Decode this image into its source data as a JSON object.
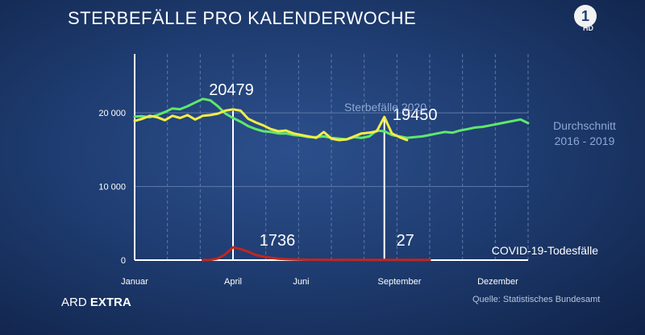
{
  "title": "STERBEFÄLLE PRO KALENDERWOCHE",
  "logo": {
    "text": "1",
    "badge": "HD"
  },
  "brand": {
    "part1": "ARD",
    "part2": "EXTRA"
  },
  "source": "Quelle: Statistisches Bundesamt",
  "colors": {
    "avg": "#5ee86a",
    "y2020": "#f5ec46",
    "covid": "#c0261e",
    "grid": "#5f78a8",
    "axis": "#ffffff"
  },
  "chart_data": {
    "type": "line",
    "title": "STERBEFÄLLE PRO KALENDERWOCHE",
    "x_domain": [
      1,
      53
    ],
    "y_domain": [
      0,
      28000
    ],
    "y_ticks": [
      {
        "v": 0,
        "label": "0"
      },
      {
        "v": 10000,
        "label": "10 000"
      },
      {
        "v": 20000,
        "label": "20 000"
      }
    ],
    "x_ticks": [
      {
        "v": 1,
        "label": "Januar"
      },
      {
        "v": 14,
        "label": "April"
      },
      {
        "v": 23,
        "label": "Juni"
      },
      {
        "v": 36,
        "label": "September"
      },
      {
        "v": 49,
        "label": "Dezember"
      }
    ],
    "grid": true,
    "series": [
      {
        "key": "avg",
        "name": "Durchschnitt 2016 - 2019",
        "color": "#5ee86a",
        "x": [
          1,
          2,
          3,
          4,
          5,
          6,
          7,
          8,
          9,
          10,
          11,
          12,
          13,
          14,
          15,
          16,
          17,
          18,
          19,
          20,
          21,
          22,
          23,
          24,
          25,
          26,
          27,
          28,
          29,
          30,
          31,
          32,
          33,
          34,
          35,
          36,
          37,
          38,
          39,
          40,
          41,
          42,
          43,
          44,
          45,
          46,
          47,
          48,
          49,
          50,
          51,
          52,
          53
        ],
        "y": [
          19500,
          19550,
          19400,
          19700,
          20100,
          20600,
          20500,
          20900,
          21400,
          21900,
          21700,
          20900,
          19900,
          19300,
          18800,
          18200,
          17800,
          17500,
          17400,
          17200,
          17200,
          17000,
          16900,
          16700,
          16700,
          16800,
          16600,
          16500,
          16400,
          16700,
          16600,
          16800,
          17600,
          17500,
          17000,
          16800,
          16600,
          16700,
          16800,
          17000,
          17200,
          17400,
          17300,
          17600,
          17800,
          18000,
          18100,
          18300,
          18500,
          18700,
          18900,
          19100,
          18600
        ]
      },
      {
        "key": "y2020",
        "name": "Sterbefälle 2020",
        "color": "#f5ec46",
        "x": [
          1,
          2,
          3,
          4,
          5,
          6,
          7,
          8,
          9,
          10,
          11,
          12,
          13,
          14,
          15,
          16,
          17,
          18,
          19,
          20,
          21,
          22,
          23,
          24,
          25,
          26,
          27,
          28,
          29,
          30,
          31,
          32,
          33,
          34,
          35,
          36,
          37
        ],
        "y": [
          18900,
          19200,
          19600,
          19400,
          19000,
          19600,
          19300,
          19700,
          19100,
          19600,
          19700,
          19900,
          20300,
          20479,
          20300,
          19200,
          18700,
          18300,
          17800,
          17500,
          17600,
          17200,
          17000,
          16800,
          16600,
          17400,
          16500,
          16300,
          16400,
          16800,
          17200,
          17300,
          17500,
          19450,
          17200,
          16700,
          16300
        ]
      },
      {
        "key": "covid",
        "name": "COVID-19-Todesfälle",
        "color": "#c0261e",
        "x": [
          10,
          11,
          12,
          13,
          14,
          15,
          16,
          17,
          18,
          19,
          20,
          21,
          22,
          23,
          24,
          25,
          26,
          27,
          28,
          29,
          30,
          31,
          32,
          33,
          34,
          35,
          36,
          37,
          38,
          39,
          40
        ],
        "y": [
          5,
          30,
          220,
          800,
          1736,
          1500,
          1150,
          700,
          480,
          320,
          200,
          140,
          100,
          70,
          60,
          50,
          40,
          30,
          30,
          30,
          27,
          27,
          27,
          27,
          27,
          27,
          27,
          27,
          27,
          27,
          27
        ]
      }
    ],
    "annotations": [
      {
        "text": "20479",
        "x": 14,
        "y": 20479
      },
      {
        "text": "19450",
        "x": 34,
        "y": 19450
      },
      {
        "text": "1736",
        "x": 14,
        "y": 1736
      },
      {
        "text": "27",
        "x": 34,
        "y": 27
      }
    ],
    "series_labels": {
      "y2020": "Sterbefälle 2020",
      "avg_line1": "Durchschnitt",
      "avg_line2": "2016 - 2019",
      "covid": "COVID-19-Todesfälle"
    }
  }
}
